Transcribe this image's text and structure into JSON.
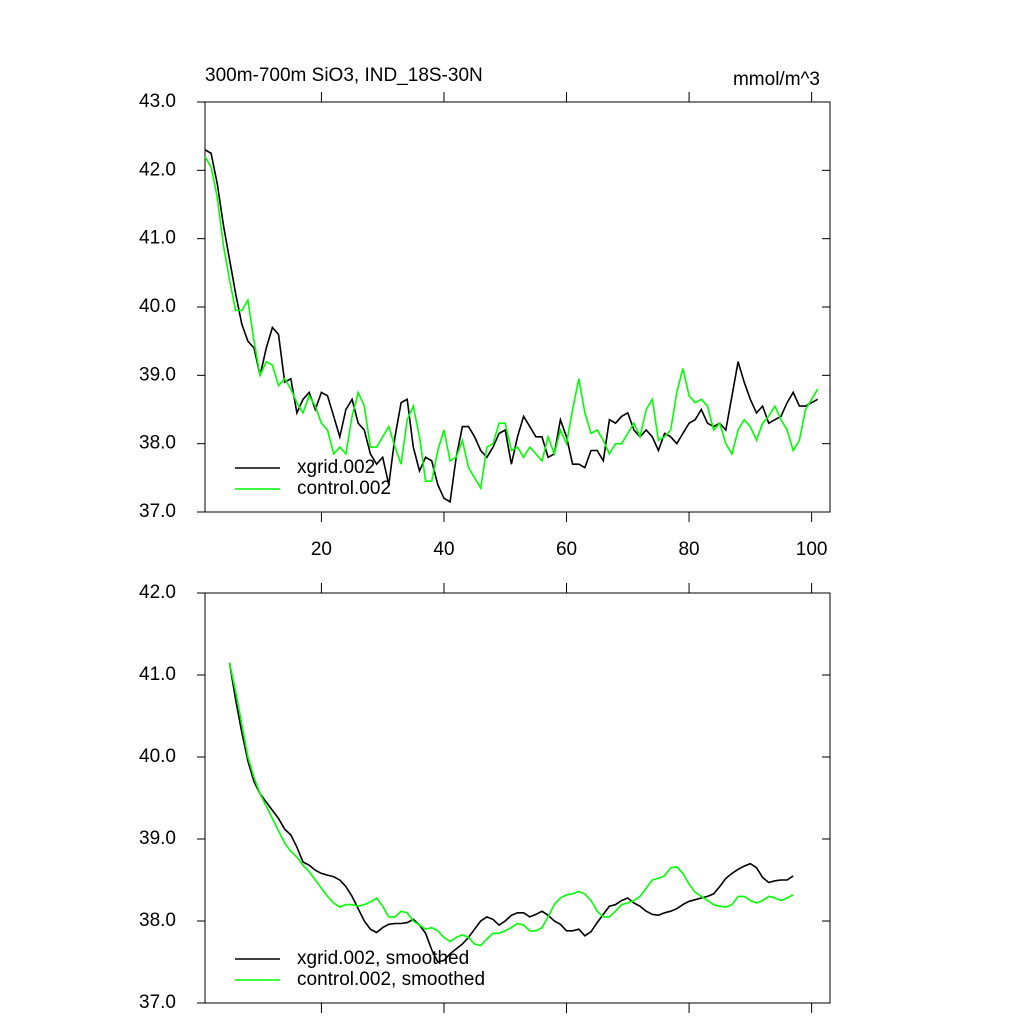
{
  "chart_data": [
    {
      "type": "line",
      "title": "300m-700m SiO3, IND_18S-30N",
      "subtitle": "mmol/m^3",
      "x": [
        1,
        2,
        3,
        4,
        5,
        6,
        7,
        8,
        9,
        10,
        11,
        12,
        13,
        14,
        15,
        16,
        17,
        18,
        19,
        20,
        21,
        22,
        23,
        24,
        25,
        26,
        27,
        28,
        29,
        30,
        31,
        32,
        33,
        34,
        35,
        36,
        37,
        38,
        39,
        40,
        41,
        42,
        43,
        44,
        45,
        46,
        47,
        48,
        49,
        50,
        51,
        52,
        53,
        54,
        55,
        56,
        57,
        58,
        59,
        60,
        61,
        62,
        63,
        64,
        65,
        66,
        67,
        68,
        69,
        70,
        71,
        72,
        73,
        74,
        75,
        76,
        77,
        78,
        79,
        80,
        81,
        82,
        83,
        84,
        85,
        86,
        87,
        88,
        89,
        90,
        91,
        92,
        93,
        94,
        95,
        96,
        97,
        98,
        99,
        100,
        101
      ],
      "xlim": [
        1,
        103
      ],
      "xticks": [
        20,
        40,
        60,
        80,
        100
      ],
      "ylim": [
        37,
        43
      ],
      "yticks": [
        {
          "value": 37,
          "label": "37.0"
        },
        {
          "value": 38,
          "label": "38.0"
        },
        {
          "value": 39,
          "label": "39.0"
        },
        {
          "value": 40,
          "label": "40.0"
        },
        {
          "value": 41,
          "label": "41.0"
        },
        {
          "value": 42,
          "label": "42.0"
        },
        {
          "value": 43,
          "label": "43.0"
        }
      ],
      "legend": "lower left",
      "series": [
        {
          "name": "xgrid.002",
          "color": "#000000",
          "values": [
            42.3,
            42.25,
            41.8,
            41.2,
            40.7,
            40.2,
            39.75,
            39.5,
            39.4,
            39.0,
            39.4,
            39.7,
            39.6,
            38.9,
            38.95,
            38.45,
            38.65,
            38.75,
            38.5,
            38.75,
            38.7,
            38.4,
            38.1,
            38.5,
            38.65,
            38.3,
            38.2,
            37.85,
            37.7,
            37.8,
            37.4,
            38.1,
            38.6,
            38.65,
            37.95,
            37.6,
            37.8,
            37.75,
            37.4,
            37.2,
            37.15,
            37.8,
            38.25,
            38.25,
            38.1,
            37.9,
            37.8,
            37.95,
            38.15,
            38.2,
            37.7,
            38.1,
            38.4,
            38.25,
            38.1,
            38.1,
            37.8,
            37.85,
            38.35,
            38.1,
            37.7,
            37.7,
            37.65,
            37.9,
            37.9,
            37.75,
            38.35,
            38.3,
            38.4,
            38.45,
            38.2,
            38.1,
            38.2,
            38.1,
            37.9,
            38.15,
            38.1,
            38.0,
            38.15,
            38.3,
            38.35,
            38.5,
            38.3,
            38.25,
            38.3,
            38.2,
            38.7,
            39.2,
            38.9,
            38.65,
            38.45,
            38.55,
            38.3,
            38.35,
            38.4,
            38.6,
            38.75,
            38.55,
            38.55,
            38.6,
            38.65
          ]
        },
        {
          "name": "control.002",
          "color": "#00ff00",
          "values": [
            42.2,
            42.05,
            41.6,
            40.9,
            40.4,
            39.95,
            39.95,
            40.1,
            39.5,
            39.0,
            39.2,
            39.15,
            38.85,
            38.95,
            38.8,
            38.6,
            38.45,
            38.7,
            38.55,
            38.3,
            38.2,
            37.85,
            37.95,
            37.85,
            38.4,
            38.75,
            38.55,
            37.95,
            37.95,
            38.1,
            38.25,
            37.95,
            37.7,
            38.35,
            38.55,
            38.1,
            37.45,
            37.45,
            37.9,
            38.2,
            37.75,
            37.8,
            38.05,
            37.65,
            37.5,
            37.35,
            37.95,
            38.0,
            38.3,
            38.3,
            37.9,
            37.95,
            37.8,
            37.95,
            37.85,
            37.75,
            38.1,
            37.85,
            38.2,
            38.0,
            38.5,
            38.95,
            38.45,
            38.15,
            38.2,
            38.05,
            37.85,
            38.0,
            38.0,
            38.15,
            38.3,
            38.1,
            38.5,
            38.65,
            38.05,
            38.1,
            38.2,
            38.75,
            39.1,
            38.7,
            38.6,
            38.65,
            38.55,
            38.2,
            38.3,
            38.0,
            37.85,
            38.2,
            38.35,
            38.25,
            38.05,
            38.3,
            38.4,
            38.55,
            38.35,
            38.2,
            37.9,
            38.05,
            38.5,
            38.65,
            38.8
          ]
        }
      ]
    },
    {
      "type": "line",
      "x": [
        5,
        6,
        7,
        8,
        9,
        10,
        11,
        12,
        13,
        14,
        15,
        16,
        17,
        18,
        19,
        20,
        21,
        22,
        23,
        24,
        25,
        26,
        27,
        28,
        29,
        30,
        31,
        32,
        33,
        34,
        35,
        36,
        37,
        38,
        39,
        40,
        41,
        42,
        43,
        44,
        45,
        46,
        47,
        48,
        49,
        50,
        51,
        52,
        53,
        54,
        55,
        56,
        57,
        58,
        59,
        60,
        61,
        62,
        63,
        64,
        65,
        66,
        67,
        68,
        69,
        70,
        71,
        72,
        73,
        74,
        75,
        76,
        77,
        78,
        79,
        80,
        81,
        82,
        83,
        84,
        85,
        86,
        87,
        88,
        89,
        90,
        91,
        92,
        93,
        94,
        95,
        96,
        97
      ],
      "xlim": [
        1,
        103
      ],
      "xticks": [
        20,
        40,
        60,
        80,
        100
      ],
      "ylim": [
        37,
        42
      ],
      "yticks": [
        {
          "value": 37,
          "label": "37.0"
        },
        {
          "value": 38,
          "label": "38.0"
        },
        {
          "value": 39,
          "label": "39.0"
        },
        {
          "value": 40,
          "label": "40.0"
        },
        {
          "value": 41,
          "label": "41.0"
        },
        {
          "value": 42,
          "label": "42.0"
        }
      ],
      "legend": "lower left",
      "series": [
        {
          "name": "xgrid.002, smoothed",
          "color": "#000000",
          "values": [
            41.15,
            40.7,
            40.3,
            39.95,
            39.7,
            39.55,
            39.45,
            39.35,
            39.25,
            39.12,
            39.05,
            38.9,
            38.72,
            38.68,
            38.62,
            38.58,
            38.56,
            38.54,
            38.5,
            38.42,
            38.3,
            38.15,
            38.0,
            37.9,
            37.86,
            37.92,
            37.96,
            37.97,
            37.97,
            37.98,
            38.02,
            37.95,
            37.85,
            37.65,
            37.5,
            37.52,
            37.6,
            37.66,
            37.72,
            37.8,
            37.9,
            38.0,
            38.05,
            38.02,
            37.95,
            38.0,
            38.07,
            38.1,
            38.1,
            38.05,
            38.08,
            38.12,
            38.07,
            38.0,
            37.96,
            37.88,
            37.88,
            37.9,
            37.82,
            37.87,
            37.98,
            38.08,
            38.18,
            38.2,
            38.25,
            38.28,
            38.22,
            38.18,
            38.12,
            38.08,
            38.07,
            38.1,
            38.12,
            38.15,
            38.2,
            38.24,
            38.26,
            38.28,
            38.3,
            38.33,
            38.42,
            38.52,
            38.58,
            38.63,
            38.67,
            38.7,
            38.65,
            38.53,
            38.47,
            38.49,
            38.5,
            38.5,
            38.55
          ]
        },
        {
          "name": "control.002, smoothed",
          "color": "#00ff00",
          "values": [
            41.15,
            40.8,
            40.4,
            40.0,
            39.75,
            39.55,
            39.4,
            39.25,
            39.1,
            38.95,
            38.85,
            38.78,
            38.68,
            38.6,
            38.5,
            38.4,
            38.3,
            38.22,
            38.17,
            38.2,
            38.2,
            38.18,
            38.2,
            38.23,
            38.28,
            38.18,
            38.05,
            38.05,
            38.12,
            38.1,
            38.0,
            37.95,
            37.9,
            37.92,
            37.88,
            37.8,
            37.75,
            37.8,
            37.83,
            37.8,
            37.72,
            37.7,
            37.78,
            37.85,
            37.85,
            37.88,
            37.92,
            37.97,
            37.95,
            37.88,
            37.88,
            37.92,
            38.05,
            38.2,
            38.28,
            38.32,
            38.33,
            38.36,
            38.33,
            38.25,
            38.12,
            38.05,
            38.05,
            38.12,
            38.2,
            38.22,
            38.25,
            38.3,
            38.4,
            38.5,
            38.52,
            38.55,
            38.65,
            38.66,
            38.58,
            38.45,
            38.35,
            38.3,
            38.25,
            38.2,
            38.18,
            38.17,
            38.2,
            38.3,
            38.3,
            38.25,
            38.22,
            38.25,
            38.3,
            38.28,
            38.25,
            38.28,
            38.32
          ]
        }
      ]
    }
  ]
}
